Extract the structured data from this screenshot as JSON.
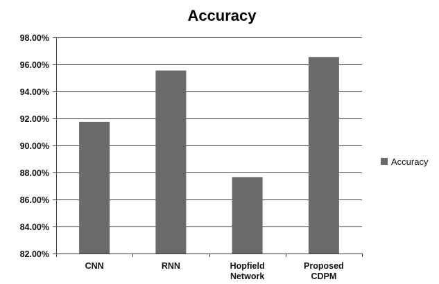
{
  "chart_data": {
    "type": "bar",
    "title": "Accuracy",
    "categories": [
      [
        "CNN"
      ],
      [
        "RNN"
      ],
      [
        "Hopfield",
        "Network"
      ],
      [
        "Proposed",
        "CDPM"
      ]
    ],
    "series": [
      {
        "name": "Accuracy",
        "color": "#6a6a6a",
        "values": [
          91.75,
          95.55,
          87.65,
          96.55
        ]
      }
    ],
    "ylim": [
      82,
      98
    ],
    "y_ticks": [
      "82.00%",
      "84.00%",
      "86.00%",
      "88.00%",
      "90.00%",
      "92.00%",
      "94.00%",
      "96.00%",
      "98.00%"
    ],
    "y_tick_values": [
      82,
      84,
      86,
      88,
      90,
      92,
      94,
      96,
      98
    ],
    "grid": true,
    "legend": "right"
  }
}
